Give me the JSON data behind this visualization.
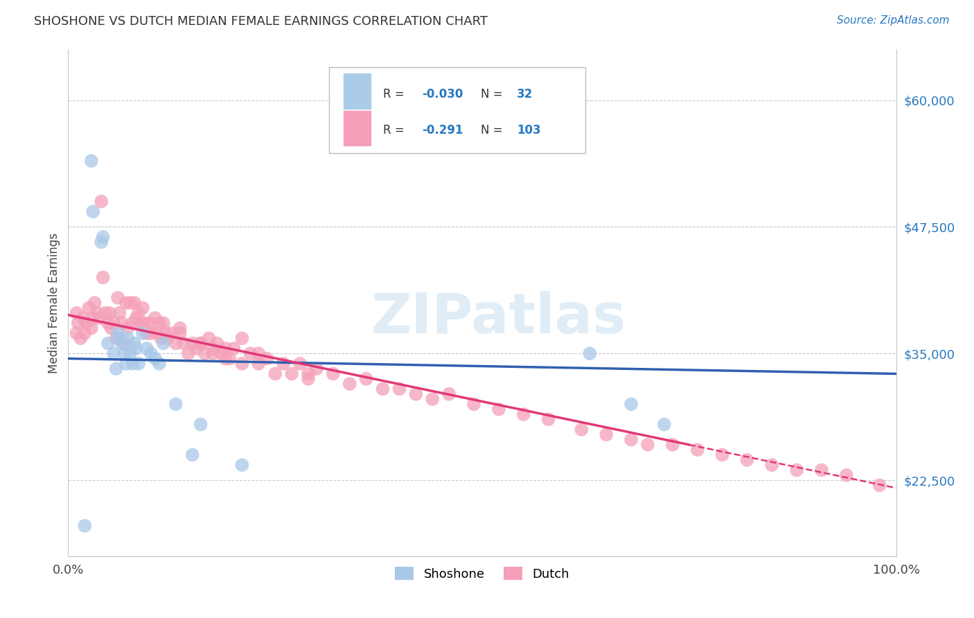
{
  "title": "SHOSHONE VS DUTCH MEDIAN FEMALE EARNINGS CORRELATION CHART",
  "source_text": "Source: ZipAtlas.com",
  "ylabel": "Median Female Earnings",
  "xlim": [
    0.0,
    1.0
  ],
  "ylim": [
    15000,
    65000
  ],
  "yticks": [
    22500,
    35000,
    47500,
    60000
  ],
  "ytick_labels": [
    "$22,500",
    "$35,000",
    "$47,500",
    "$60,000"
  ],
  "xtick_labels": [
    "0.0%",
    "100.0%"
  ],
  "background_color": "#ffffff",
  "grid_color": "#c8c8c8",
  "watermark": "ZIPatlas",
  "shoshone_color": "#a8c8e8",
  "dutch_color": "#f4a0b8",
  "shoshone_line_color": "#3060b0",
  "dutch_line_color": "#e03878",
  "shoshone_x": [
    0.02,
    0.028,
    0.03,
    0.04,
    0.042,
    0.048,
    0.055,
    0.058,
    0.06,
    0.062,
    0.065,
    0.068,
    0.07,
    0.072,
    0.075,
    0.078,
    0.08,
    0.082,
    0.085,
    0.09,
    0.095,
    0.1,
    0.105,
    0.11,
    0.115,
    0.13,
    0.15,
    0.16,
    0.21,
    0.63,
    0.68,
    0.72
  ],
  "shoshone_y": [
    18000,
    54000,
    49000,
    46000,
    46500,
    36000,
    35000,
    33500,
    37000,
    36500,
    36000,
    35000,
    34000,
    36500,
    35000,
    34000,
    36000,
    35500,
    34000,
    37000,
    35500,
    35000,
    34500,
    34000,
    36000,
    30000,
    25000,
    28000,
    24000,
    35000,
    30000,
    28000
  ],
  "dutch_x": [
    0.01,
    0.01,
    0.012,
    0.015,
    0.018,
    0.02,
    0.022,
    0.025,
    0.028,
    0.03,
    0.032,
    0.035,
    0.038,
    0.04,
    0.042,
    0.045,
    0.048,
    0.05,
    0.052,
    0.055,
    0.058,
    0.06,
    0.062,
    0.065,
    0.068,
    0.07,
    0.072,
    0.075,
    0.078,
    0.08,
    0.082,
    0.085,
    0.088,
    0.09,
    0.092,
    0.095,
    0.098,
    0.1,
    0.105,
    0.108,
    0.11,
    0.112,
    0.115,
    0.118,
    0.12,
    0.125,
    0.13,
    0.135,
    0.14,
    0.145,
    0.15,
    0.155,
    0.16,
    0.165,
    0.17,
    0.175,
    0.18,
    0.185,
    0.19,
    0.195,
    0.2,
    0.21,
    0.22,
    0.23,
    0.24,
    0.25,
    0.26,
    0.27,
    0.28,
    0.29,
    0.3,
    0.32,
    0.34,
    0.36,
    0.38,
    0.4,
    0.42,
    0.44,
    0.46,
    0.49,
    0.52,
    0.55,
    0.58,
    0.62,
    0.65,
    0.68,
    0.7,
    0.73,
    0.76,
    0.79,
    0.82,
    0.85,
    0.88,
    0.91,
    0.94,
    0.98,
    0.135,
    0.29,
    0.23,
    0.16,
    0.19,
    0.21,
    0.175
  ],
  "dutch_y": [
    39000,
    37000,
    38000,
    36500,
    38500,
    37000,
    38000,
    39500,
    37500,
    38500,
    40000,
    39000,
    38500,
    50000,
    42500,
    39000,
    38000,
    39000,
    37500,
    38000,
    36500,
    40500,
    39000,
    38000,
    36000,
    40000,
    37500,
    40000,
    38000,
    40000,
    38500,
    39000,
    38000,
    39500,
    38000,
    37000,
    38000,
    37000,
    38500,
    37000,
    38000,
    36500,
    38000,
    37000,
    36500,
    37000,
    36000,
    37000,
    36000,
    35000,
    36000,
    35500,
    36000,
    35000,
    36500,
    35000,
    36000,
    35000,
    35500,
    34500,
    35500,
    34000,
    35000,
    34000,
    34500,
    33000,
    34000,
    33000,
    34000,
    32500,
    33500,
    33000,
    32000,
    32500,
    31500,
    31500,
    31000,
    30500,
    31000,
    30000,
    29500,
    29000,
    28500,
    27500,
    27000,
    26500,
    26000,
    26000,
    25500,
    25000,
    24500,
    24000,
    23500,
    23500,
    23000,
    22000,
    37500,
    33000,
    35000,
    36000,
    34500,
    36500,
    35500
  ]
}
